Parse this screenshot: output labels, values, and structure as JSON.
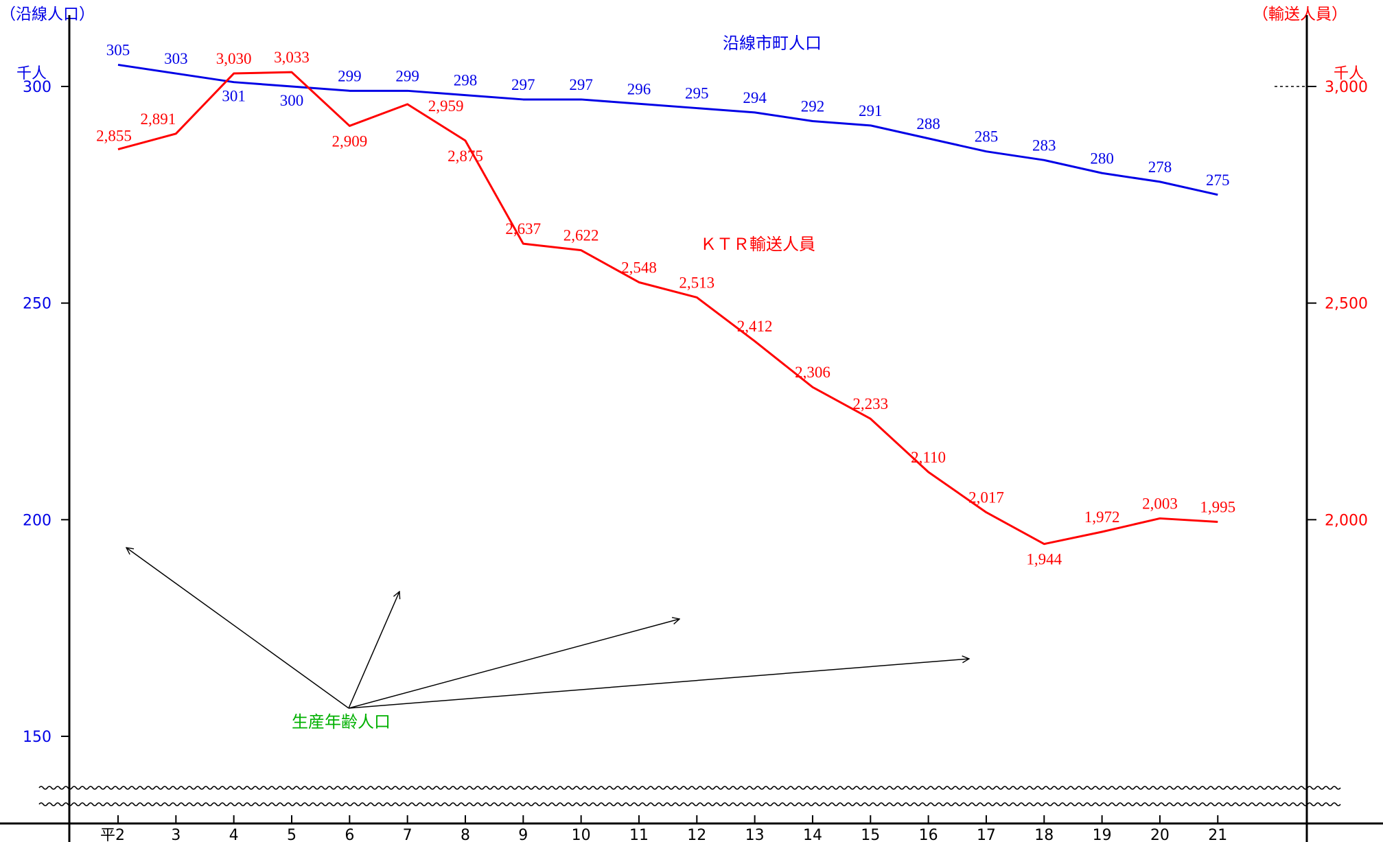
{
  "chart_data": {
    "type": "line",
    "left_axis_title": "（沿線人口）",
    "left_axis_unit": "千人",
    "right_axis_title": "（輸送人員）",
    "right_axis_unit": "千人",
    "x_tick_labels": [
      "平2",
      "3",
      "4",
      "5",
      "6",
      "7",
      "8",
      "9",
      "10",
      "11",
      "12",
      "13",
      "14",
      "15",
      "16",
      "17",
      "18",
      "19",
      "20",
      "21"
    ],
    "left_ticks": [
      150,
      200,
      250,
      300
    ],
    "left_ylim": [
      150,
      300
    ],
    "right_ticks": [
      "2,000",
      "2,500",
      "3,000"
    ],
    "right_ylim": [
      1500,
      3000
    ],
    "series": [
      {
        "name": "沿線市町人口",
        "axis": "left",
        "color": "#0000e6",
        "values": [
          305,
          303,
          301,
          300,
          299,
          299,
          298,
          297,
          297,
          296,
          295,
          294,
          292,
          291,
          288,
          285,
          283,
          280,
          278,
          275
        ],
        "labels": [
          "305",
          "303",
          "301",
          "300",
          "299",
          "299",
          "298",
          "297",
          "297",
          "296",
          "295",
          "294",
          "292",
          "291",
          "288",
          "285",
          "283",
          "280",
          "278",
          "275"
        ]
      },
      {
        "name": "ＫＴＲ輸送人員",
        "axis": "right",
        "color": "#ff0000",
        "values": [
          2855,
          2891,
          3030,
          3033,
          2909,
          2959,
          2875,
          2637,
          2622,
          2548,
          2513,
          2412,
          2306,
          2233,
          2110,
          2017,
          1944,
          1972,
          2003,
          1995
        ],
        "labels": [
          "2,855",
          "2,891",
          "3,030",
          "3,033",
          "2,909",
          "2,959",
          "2,875",
          "2,637",
          "2,622",
          "2,548",
          "2,513",
          "2,412",
          "2,306",
          "2,233",
          "2,110",
          "2,017",
          "1,944",
          "1,972",
          "2,003",
          "1,995"
        ]
      }
    ],
    "annotation": {
      "text": "生産年齢人口",
      "color": "#00b000"
    }
  }
}
